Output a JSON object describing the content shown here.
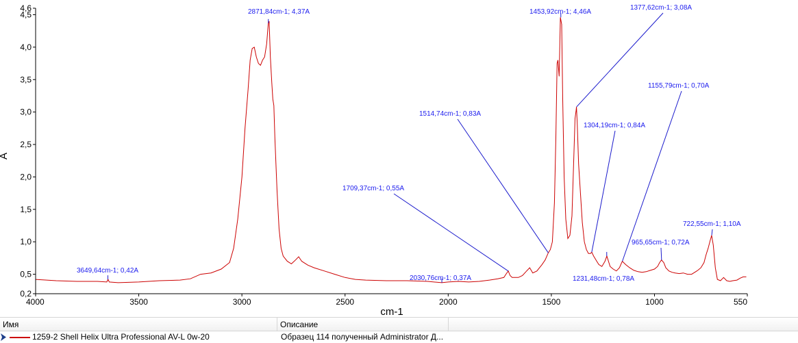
{
  "chart_data": {
    "type": "line",
    "xlabel": "cm-1",
    "ylabel": "A",
    "xlim": [
      4000,
      550
    ],
    "ylim": [
      0.2,
      4.6
    ],
    "x_reversed": true,
    "grid": false,
    "x_ticks": [
      4000,
      3500,
      3000,
      2500,
      2000,
      1500,
      1000,
      550
    ],
    "x_tick_labels": [
      "4000",
      "3500",
      "3000",
      "2500",
      "2000",
      "1500",
      "1000",
      "550"
    ],
    "y_ticks": [
      0.2,
      0.5,
      1.0,
      1.5,
      2.0,
      2.5,
      3.0,
      3.5,
      4.0,
      4.5,
      4.6
    ],
    "y_tick_labels": [
      "0,2",
      "0,5",
      "1,0",
      "1,5",
      "2,0",
      "2,5",
      "3,0",
      "3,5",
      "4,0",
      "4,5",
      "4,6"
    ],
    "series_color": "#cc0000",
    "series": [
      {
        "name": "1259-2 Shell Helix Ultra Professional AV-L 0w-20",
        "points": [
          [
            4000,
            0.42
          ],
          [
            3900,
            0.4
          ],
          [
            3800,
            0.39
          ],
          [
            3700,
            0.39
          ],
          [
            3655,
            0.38
          ],
          [
            3649,
            0.42
          ],
          [
            3643,
            0.38
          ],
          [
            3600,
            0.37
          ],
          [
            3500,
            0.38
          ],
          [
            3400,
            0.4
          ],
          [
            3300,
            0.41
          ],
          [
            3250,
            0.43
          ],
          [
            3200,
            0.5
          ],
          [
            3150,
            0.52
          ],
          [
            3100,
            0.58
          ],
          [
            3060,
            0.68
          ],
          [
            3040,
            0.9
          ],
          [
            3020,
            1.35
          ],
          [
            3000,
            2.0
          ],
          [
            2985,
            2.75
          ],
          [
            2970,
            3.35
          ],
          [
            2960,
            3.8
          ],
          [
            2950,
            3.98
          ],
          [
            2940,
            4.0
          ],
          [
            2930,
            3.85
          ],
          [
            2920,
            3.75
          ],
          [
            2910,
            3.72
          ],
          [
            2900,
            3.8
          ],
          [
            2890,
            3.85
          ],
          [
            2880,
            4.05
          ],
          [
            2872,
            4.37
          ],
          [
            2868,
            4.4
          ],
          [
            2862,
            3.85
          ],
          [
            2855,
            3.45
          ],
          [
            2850,
            3.2
          ],
          [
            2845,
            3.1
          ],
          [
            2840,
            2.6
          ],
          [
            2830,
            1.8
          ],
          [
            2820,
            1.2
          ],
          [
            2810,
            0.9
          ],
          [
            2800,
            0.78
          ],
          [
            2780,
            0.7
          ],
          [
            2760,
            0.66
          ],
          [
            2740,
            0.72
          ],
          [
            2725,
            0.77
          ],
          [
            2710,
            0.7
          ],
          [
            2680,
            0.64
          ],
          [
            2650,
            0.6
          ],
          [
            2600,
            0.55
          ],
          [
            2550,
            0.5
          ],
          [
            2500,
            0.45
          ],
          [
            2450,
            0.42
          ],
          [
            2400,
            0.41
          ],
          [
            2300,
            0.4
          ],
          [
            2200,
            0.4
          ],
          [
            2100,
            0.39
          ],
          [
            2031,
            0.37
          ],
          [
            2000,
            0.38
          ],
          [
            1950,
            0.39
          ],
          [
            1900,
            0.38
          ],
          [
            1850,
            0.39
          ],
          [
            1800,
            0.41
          ],
          [
            1760,
            0.43
          ],
          [
            1730,
            0.45
          ],
          [
            1720,
            0.5
          ],
          [
            1709,
            0.55
          ],
          [
            1700,
            0.48
          ],
          [
            1690,
            0.45
          ],
          [
            1660,
            0.45
          ],
          [
            1640,
            0.48
          ],
          [
            1620,
            0.55
          ],
          [
            1605,
            0.6
          ],
          [
            1590,
            0.52
          ],
          [
            1570,
            0.55
          ],
          [
            1545,
            0.65
          ],
          [
            1530,
            0.72
          ],
          [
            1515,
            0.83
          ],
          [
            1505,
            0.88
          ],
          [
            1495,
            1.0
          ],
          [
            1485,
            1.6
          ],
          [
            1478,
            2.6
          ],
          [
            1472,
            3.75
          ],
          [
            1468,
            3.8
          ],
          [
            1462,
            3.55
          ],
          [
            1456,
            4.46
          ],
          [
            1450,
            4.35
          ],
          [
            1445,
            3.2
          ],
          [
            1438,
            2.0
          ],
          [
            1430,
            1.35
          ],
          [
            1420,
            1.05
          ],
          [
            1410,
            1.1
          ],
          [
            1400,
            1.4
          ],
          [
            1392,
            2.2
          ],
          [
            1385,
            2.9
          ],
          [
            1380,
            3.02
          ],
          [
            1378,
            3.08
          ],
          [
            1374,
            2.8
          ],
          [
            1368,
            2.2
          ],
          [
            1362,
            1.9
          ],
          [
            1358,
            1.7
          ],
          [
            1350,
            1.3
          ],
          [
            1340,
            1.0
          ],
          [
            1330,
            0.88
          ],
          [
            1320,
            0.82
          ],
          [
            1310,
            0.82
          ],
          [
            1304,
            0.84
          ],
          [
            1295,
            0.78
          ],
          [
            1280,
            0.7
          ],
          [
            1270,
            0.65
          ],
          [
            1255,
            0.62
          ],
          [
            1240,
            0.7
          ],
          [
            1231,
            0.78
          ],
          [
            1225,
            0.72
          ],
          [
            1215,
            0.62
          ],
          [
            1200,
            0.58
          ],
          [
            1185,
            0.55
          ],
          [
            1170,
            0.6
          ],
          [
            1156,
            0.7
          ],
          [
            1140,
            0.65
          ],
          [
            1120,
            0.6
          ],
          [
            1100,
            0.56
          ],
          [
            1080,
            0.54
          ],
          [
            1060,
            0.53
          ],
          [
            1040,
            0.54
          ],
          [
            1020,
            0.56
          ],
          [
            1000,
            0.58
          ],
          [
            985,
            0.62
          ],
          [
            975,
            0.68
          ],
          [
            966,
            0.72
          ],
          [
            955,
            0.68
          ],
          [
            945,
            0.6
          ],
          [
            930,
            0.55
          ],
          [
            915,
            0.53
          ],
          [
            900,
            0.52
          ],
          [
            880,
            0.51
          ],
          [
            860,
            0.52
          ],
          [
            840,
            0.5
          ],
          [
            820,
            0.5
          ],
          [
            810,
            0.52
          ],
          [
            790,
            0.56
          ],
          [
            775,
            0.6
          ],
          [
            760,
            0.68
          ],
          [
            750,
            0.8
          ],
          [
            740,
            0.9
          ],
          [
            730,
            1.02
          ],
          [
            723,
            1.1
          ],
          [
            715,
            0.95
          ],
          [
            705,
            0.6
          ],
          [
            695,
            0.42
          ],
          [
            680,
            0.4
          ],
          [
            665,
            0.45
          ],
          [
            650,
            0.4
          ],
          [
            635,
            0.39
          ],
          [
            620,
            0.4
          ],
          [
            600,
            0.41
          ],
          [
            585,
            0.44
          ],
          [
            570,
            0.46
          ],
          [
            555,
            0.46
          ]
        ]
      }
    ],
    "annotations": [
      {
        "x": 2871.84,
        "y": 4.37,
        "label": "2871,84cm-1; 4,37A"
      },
      {
        "x": 3649.64,
        "y": 0.42,
        "label": "3649,64cm-1; 0,42A"
      },
      {
        "x": 2030.76,
        "y": 0.37,
        "label": "2030,76cm-1; 0,37A"
      },
      {
        "x": 1709.37,
        "y": 0.55,
        "label": "1709,37cm-1; 0,55A"
      },
      {
        "x": 1514.74,
        "y": 0.83,
        "label": "1514,74cm-1; 0,83A"
      },
      {
        "x": 1453.92,
        "y": 4.46,
        "label": "1453,92cm-1; 4,46A"
      },
      {
        "x": 1377.62,
        "y": 3.08,
        "label": "1377,62cm-1; 3,08A"
      },
      {
        "x": 1304.19,
        "y": 0.84,
        "label": "1304,19cm-1; 0,84A"
      },
      {
        "x": 1231.48,
        "y": 0.78,
        "label": "1231,48cm-1; 0,78A"
      },
      {
        "x": 1155.79,
        "y": 0.7,
        "label": "1155,79cm-1; 0,70A"
      },
      {
        "x": 965.65,
        "y": 0.72,
        "label": "965,65cm-1; 0,72A"
      },
      {
        "x": 722.55,
        "y": 1.1,
        "label": "722,55cm-1; 1,10A"
      }
    ]
  },
  "grid": {
    "columns": [
      "Имя",
      "Описание"
    ],
    "rows": [
      {
        "name": "1259-2 Shell Helix Ultra Professional AV-L 0w-20",
        "description": "Образец 114 полученный Administrator Д..."
      }
    ]
  }
}
